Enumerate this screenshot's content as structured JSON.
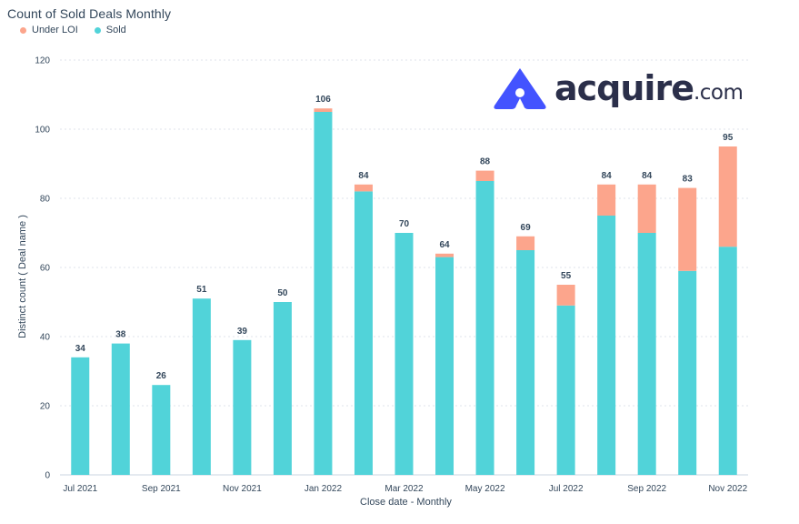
{
  "title": "Count of Sold Deals Monthly",
  "legend": [
    {
      "label": "Under LOI",
      "color": "#fca58c"
    },
    {
      "label": "Sold",
      "color": "#51d3d9"
    }
  ],
  "logo": {
    "text": "acquire",
    "suffix": ".com",
    "color": "#4353ff"
  },
  "chart_data": {
    "type": "bar",
    "stacked": true,
    "title": "Count of Sold Deals Monthly",
    "xlabel": "Close date - Monthly",
    "ylabel": "Distinct count ( Deal name )",
    "ylim": [
      0,
      120
    ],
    "yticks": [
      0,
      20,
      40,
      60,
      80,
      100,
      120
    ],
    "categories": [
      "Jul 2021",
      "Aug 2021",
      "Sep 2021",
      "Oct 2021",
      "Nov 2021",
      "Dec 2021",
      "Jan 2022",
      "Feb 2022",
      "Mar 2022",
      "Apr 2022",
      "May 2022",
      "Jun 2022",
      "Jul 2022",
      "Aug 2022",
      "Sep 2022",
      "Oct 2022",
      "Nov 2022"
    ],
    "xtick_labels": [
      "Jul 2021",
      "",
      "Sep 2021",
      "",
      "Nov 2021",
      "",
      "Jan 2022",
      "",
      "Mar 2022",
      "",
      "May 2022",
      "",
      "Jul 2022",
      "",
      "Sep 2022",
      "",
      "Nov 2022"
    ],
    "series": [
      {
        "name": "Sold",
        "color": "#51d3d9",
        "values": [
          34,
          38,
          26,
          51,
          39,
          50,
          105,
          82,
          70,
          63,
          85,
          65,
          49,
          75,
          70,
          59,
          66
        ]
      },
      {
        "name": "Under LOI",
        "color": "#fca58c",
        "values": [
          0,
          0,
          0,
          0,
          0,
          0,
          1,
          2,
          0,
          1,
          3,
          4,
          6,
          9,
          14,
          24,
          29
        ]
      }
    ],
    "totals": [
      34,
      38,
      26,
      51,
      39,
      50,
      106,
      84,
      70,
      64,
      88,
      69,
      55,
      84,
      84,
      83,
      95
    ],
    "grid": true,
    "legend_position": "top-left"
  }
}
